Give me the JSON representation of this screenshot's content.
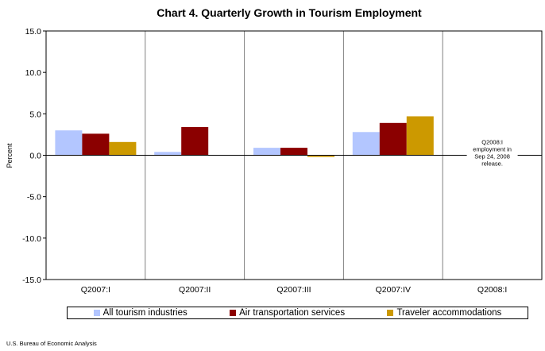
{
  "chart_data": {
    "type": "bar",
    "title": "Chart 4. Quarterly Growth in Tourism Employment",
    "xlabel": "",
    "ylabel": "Percent",
    "ylim": [
      -15,
      15
    ],
    "yticks": [
      15,
      10,
      5,
      0,
      -5,
      -10,
      -15
    ],
    "ytick_labels": [
      "15.0",
      "10.0",
      "5.0",
      "0.0",
      "-5.0",
      "-10.0",
      "-15.0"
    ],
    "categories": [
      "Q2007:I",
      "Q2007:II",
      "Q2007:III",
      "Q2007:IV",
      "Q2008:I"
    ],
    "series": [
      {
        "name": "All tourism industries",
        "color": "#b3c6ff",
        "values": [
          3.0,
          0.4,
          0.9,
          2.8,
          null
        ]
      },
      {
        "name": "Air transportation services",
        "color": "#8b0000",
        "values": [
          2.6,
          3.4,
          0.9,
          3.9,
          null
        ]
      },
      {
        "name": "Traveler accommodations",
        "color": "#cc9900",
        "values": [
          1.6,
          0.0,
          -0.2,
          4.7,
          null
        ]
      }
    ],
    "grid": "vertical",
    "legend_position": "bottom",
    "annotation": "Q2008:I employment in Sep 24, 2008 release."
  },
  "footer": {
    "source": "U.S. Bureau of Economic Analysis"
  }
}
